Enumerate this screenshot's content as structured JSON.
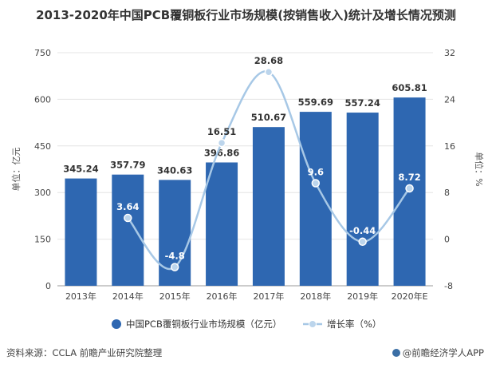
{
  "chart_data": {
    "type": "bar",
    "title": "2013-2020年中国PCB覆铜板行业市场规模(按销售收入)统计及增长情况预测",
    "categories": [
      "2013年",
      "2014年",
      "2015年",
      "2016年",
      "2017年",
      "2018年",
      "2019年",
      "2020年E"
    ],
    "series": [
      {
        "name": "中国PCB覆铜板行业市场规模（亿元）",
        "type": "bar",
        "axis": "left",
        "values": [
          345.24,
          357.79,
          340.63,
          396.86,
          510.67,
          559.69,
          557.24,
          605.81
        ],
        "labels": [
          "345.24",
          "357.79",
          "340.63",
          "396.86",
          "510.67",
          "559.69",
          "557.24",
          "605.81"
        ]
      },
      {
        "name": "增长率（%）",
        "type": "line",
        "axis": "right",
        "values": [
          null,
          3.64,
          -4.8,
          16.51,
          28.68,
          9.6,
          -0.44,
          8.72
        ],
        "labels": [
          "",
          "3.64",
          "-4.8",
          "16.51",
          "28.68",
          "9.6",
          "-0.44",
          "8.72"
        ]
      }
    ],
    "ylabel_left": "单位：亿元",
    "ylabel_right": "单位：%",
    "ylim_left": [
      0,
      750
    ],
    "yticks_left": [
      "0",
      "150",
      "300",
      "450",
      "600",
      "750"
    ],
    "ylim_right": [
      -8,
      32
    ],
    "yticks_right": [
      "-8",
      "0",
      "8",
      "16",
      "24",
      "32"
    ],
    "grid": true,
    "legend_position": "bottom",
    "colors": {
      "bar": "#2e67b1",
      "line": "#a7c8e6",
      "marker": "#bcd5ec"
    }
  },
  "footer": {
    "source": "资料来源：CCLA 前瞻产业研究院整理",
    "credit": "@前瞻经济学人APP"
  }
}
